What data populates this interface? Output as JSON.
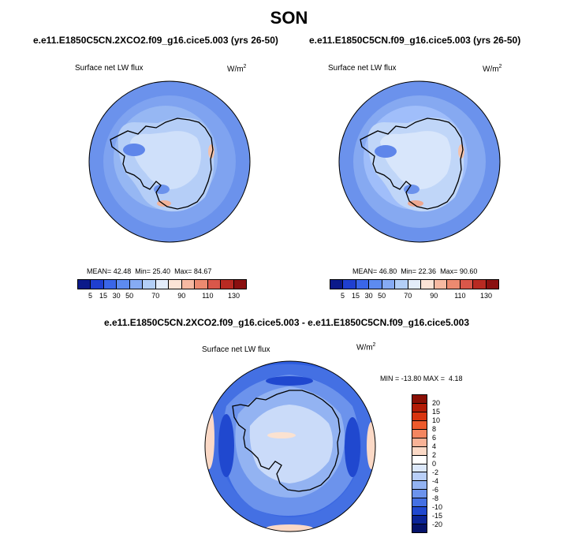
{
  "title": "SON",
  "panels": [
    {
      "case": "e.e11.E1850C5CN.2XCO2.f09_g16.cice5.003 (yrs 26-50)",
      "variable": "Surface net LW flux",
      "units": "W/m",
      "units_exp": "2",
      "stats": "MEAN= 42.48  Min= 25.40  Max= 84.67",
      "colorbar_ticks": [
        "5",
        "15",
        "30",
        "50",
        "70",
        "90",
        "110",
        "130"
      ]
    },
    {
      "case": "e.e11.E1850C5CN.f09_g16.cice5.003 (yrs 26-50)",
      "variable": "Surface net LW flux",
      "units": "W/m",
      "units_exp": "2",
      "stats": "MEAN= 46.80  Min= 22.36  Max= 90.60",
      "colorbar_ticks": [
        "5",
        "15",
        "30",
        "50",
        "70",
        "90",
        "110",
        "130"
      ]
    }
  ],
  "diff": {
    "case": "e.e11.E1850C5CN.2XCO2.f09_g16.cice5.003 - e.e11.E1850C5CN.f09_g16.cice5.003",
    "variable": "Surface net LW flux",
    "units": "W/m",
    "units_exp": "2",
    "stats": "MIN = -13.80 MAX =  4.18",
    "colorbar_ticks": [
      "20",
      "15",
      "10",
      "8",
      "6",
      "4",
      "2",
      "0",
      "-2",
      "-4",
      "-6",
      "-8",
      "-10",
      "-15",
      "-20"
    ]
  },
  "colors": {
    "abs_scale": [
      "#0c1a8a",
      "#1f3fd0",
      "#3a66e8",
      "#5d8bf0",
      "#86abf4",
      "#b3cff7",
      "#e3ecfa",
      "#fbe3d6",
      "#f6b9a2",
      "#ec8a70",
      "#d9574a",
      "#b82a22",
      "#8a1010"
    ],
    "diff_scale": [
      "#8a0f05",
      "#b31b06",
      "#d8340f",
      "#ee5a2c",
      "#f48660",
      "#f8b296",
      "#fbd9c6",
      "#ffffff",
      "#dce8fb",
      "#b9cff7",
      "#93b3f2",
      "#6c93ec",
      "#4470e3",
      "#2048cf",
      "#0b2497",
      "#05126a"
    ]
  }
}
